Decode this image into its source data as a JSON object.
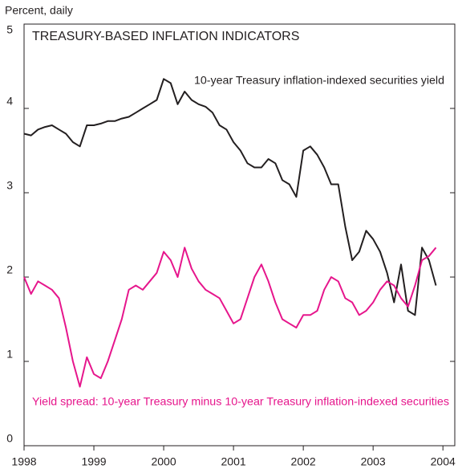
{
  "chart_data": {
    "type": "line",
    "title": "TREASURY-BASED INFLATION INDICATORS",
    "y_label": "Percent, daily",
    "x": [
      1998.0,
      1998.1,
      1998.2,
      1998.3,
      1998.4,
      1998.5,
      1998.6,
      1998.7,
      1998.8,
      1998.9,
      1999.0,
      1999.1,
      1999.2,
      1999.3,
      1999.4,
      1999.5,
      1999.6,
      1999.7,
      1999.8,
      1999.9,
      2000.0,
      2000.1,
      2000.2,
      2000.3,
      2000.4,
      2000.5,
      2000.6,
      2000.7,
      2000.8,
      2000.9,
      2001.0,
      2001.1,
      2001.2,
      2001.3,
      2001.4,
      2001.5,
      2001.6,
      2001.7,
      2001.8,
      2001.9,
      2002.0,
      2002.1,
      2002.2,
      2002.3,
      2002.4,
      2002.5,
      2002.6,
      2002.7,
      2002.8,
      2002.9,
      2003.0,
      2003.1,
      2003.2,
      2003.3,
      2003.4,
      2003.5,
      2003.6,
      2003.7,
      2003.8,
      2003.9
    ],
    "series": [
      {
        "name": "10-year Treasury inflation-indexed securities yield",
        "color": "#231f20",
        "values": [
          3.7,
          3.68,
          3.75,
          3.78,
          3.8,
          3.75,
          3.7,
          3.6,
          3.55,
          3.8,
          3.8,
          3.82,
          3.85,
          3.85,
          3.88,
          3.9,
          3.95,
          4.0,
          4.05,
          4.1,
          4.35,
          4.3,
          4.05,
          4.2,
          4.1,
          4.05,
          4.02,
          3.95,
          3.8,
          3.75,
          3.6,
          3.5,
          3.35,
          3.3,
          3.3,
          3.4,
          3.35,
          3.15,
          3.1,
          2.95,
          3.5,
          3.55,
          3.45,
          3.3,
          3.1,
          3.1,
          2.6,
          2.2,
          2.3,
          2.55,
          2.45,
          2.3,
          2.05,
          1.7,
          2.15,
          1.6,
          1.55,
          2.35,
          2.2,
          1.9
        ]
      },
      {
        "name": "Yield spread: 10-year Treasury minus 10-year Treasury inflation-indexed securities",
        "color": "#e6168c",
        "values": [
          2.0,
          1.8,
          1.95,
          1.9,
          1.85,
          1.75,
          1.4,
          1.0,
          0.7,
          1.05,
          0.85,
          0.8,
          1.0,
          1.25,
          1.5,
          1.85,
          1.9,
          1.85,
          1.95,
          2.05,
          2.3,
          2.2,
          2.0,
          2.35,
          2.1,
          1.95,
          1.85,
          1.8,
          1.75,
          1.6,
          1.45,
          1.5,
          1.75,
          2.0,
          2.15,
          1.95,
          1.7,
          1.5,
          1.45,
          1.4,
          1.55,
          1.55,
          1.6,
          1.85,
          2.0,
          1.95,
          1.75,
          1.7,
          1.55,
          1.6,
          1.7,
          1.85,
          1.95,
          1.9,
          1.75,
          1.65,
          1.9,
          2.2,
          2.25,
          2.35
        ]
      }
    ],
    "xlim": [
      1998,
      2004.17
    ],
    "xticks": [
      1998,
      1999,
      2000,
      2001,
      2002,
      2003,
      2004
    ],
    "ylim": [
      0,
      5
    ],
    "yticks": [
      0,
      1,
      2,
      3,
      4,
      5
    ],
    "grid": false
  }
}
